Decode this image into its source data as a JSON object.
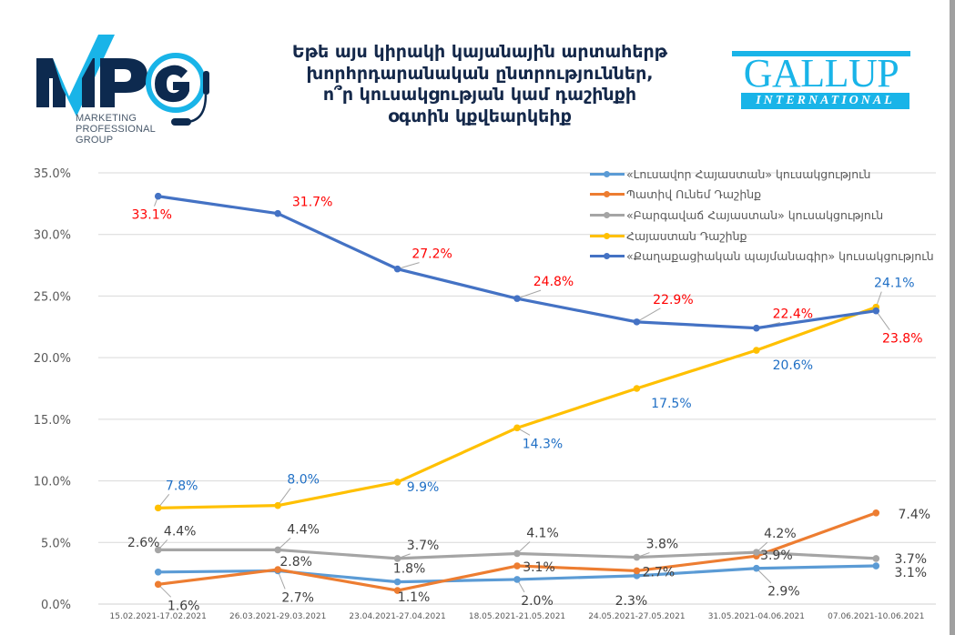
{
  "logos": {
    "left": {
      "letters": "MPG",
      "subtitle_lines": [
        "MARKETING",
        "PROFESSIONAL",
        "GROUP"
      ],
      "colors": {
        "navy": "#0d2a4f",
        "cyan": "#19b4e8"
      }
    },
    "right": {
      "word": "GALLUP",
      "subtitle": "INTERNATIONAL",
      "color": "#19b4e8"
    }
  },
  "title_lines": [
    "Եթե այս կիրակի կայանային արտահերթ",
    "խորհրդարանական ընտրություններ,",
    "ո՞ր կուսակցության կամ դաշինքի",
    "օգտին կքվեարկեիք"
  ],
  "chart_data": {
    "type": "line",
    "title": "Եթե այս կիրակի կայանային արտահերթ խորհրդարանական ընտրություններ, ո՞ր կուսակցության կամ դաշինքի օգտին կքվեարկեիք",
    "xlabel": "",
    "ylabel": "",
    "ylim": [
      0,
      35
    ],
    "yticks": [
      0,
      5,
      10,
      15,
      20,
      25,
      30,
      35
    ],
    "ytick_labels": [
      "0.0%",
      "5.0%",
      "10.0%",
      "15.0%",
      "20.0%",
      "25.0%",
      "30.0%",
      "35.0%"
    ],
    "grid": true,
    "legend_position": "top-right",
    "categories": [
      "15.02.2021-17.02.2021",
      "26.03.2021-29.03.2021",
      "23.04.2021-27.04.2021",
      "18.05.2021-21.05.2021",
      "24.05.2021-27.05.2021",
      "31.05.2021-04.06.2021",
      "07.06.2021-10.06.2021"
    ],
    "series": [
      {
        "name": "«Լուսավոր Հայաստան» կուսակցություն",
        "color": "#5b9bd5",
        "label_color": "#404040",
        "values": [
          2.6,
          2.7,
          1.8,
          2.0,
          2.3,
          2.9,
          3.1
        ],
        "labels": [
          "2.6%",
          "2.7%",
          "1.8%",
          "2.0%",
          "2.3%",
          "2.9%",
          "3.1%"
        ]
      },
      {
        "name": "Պատիվ Ունեմ Դաշինք",
        "color": "#ed7d31",
        "label_color": "#404040",
        "values": [
          1.6,
          2.8,
          1.1,
          3.1,
          2.7,
          3.9,
          7.4
        ],
        "labels": [
          "1.6%",
          "2.8%",
          "1.1%",
          "3.1%",
          "2.7%",
          "3.9%",
          "7.4%"
        ]
      },
      {
        "name": "«Բարգավաճ Հայաստան»  կուսակցություն",
        "color": "#a5a5a5",
        "label_color": "#404040",
        "values": [
          4.4,
          4.4,
          3.7,
          4.1,
          3.8,
          4.2,
          3.7
        ],
        "labels": [
          "4.4%",
          "4.4%",
          "3.7%",
          "4.1%",
          "3.8%",
          "4.2%",
          "3.7%"
        ]
      },
      {
        "name": "Հայաստան Դաշինք",
        "color": "#ffc000",
        "label_color": "#1f6fc5",
        "values": [
          7.8,
          8.0,
          9.9,
          14.3,
          17.5,
          20.6,
          24.1
        ],
        "labels": [
          "7.8%",
          "8.0%",
          "9.9%",
          "14.3%",
          "17.5%",
          "20.6%",
          "24.1%"
        ]
      },
      {
        "name": "«Քաղաքացիական պայմանագիր» կուսակցություն",
        "color": "#4472c4",
        "label_color": "#ff0000",
        "values": [
          33.1,
          31.7,
          27.2,
          24.8,
          22.9,
          22.4,
          23.8
        ],
        "labels": [
          "33.1%",
          "31.7%",
          "27.2%",
          "24.8%",
          "22.9%",
          "22.4%",
          "23.8%"
        ]
      }
    ]
  }
}
